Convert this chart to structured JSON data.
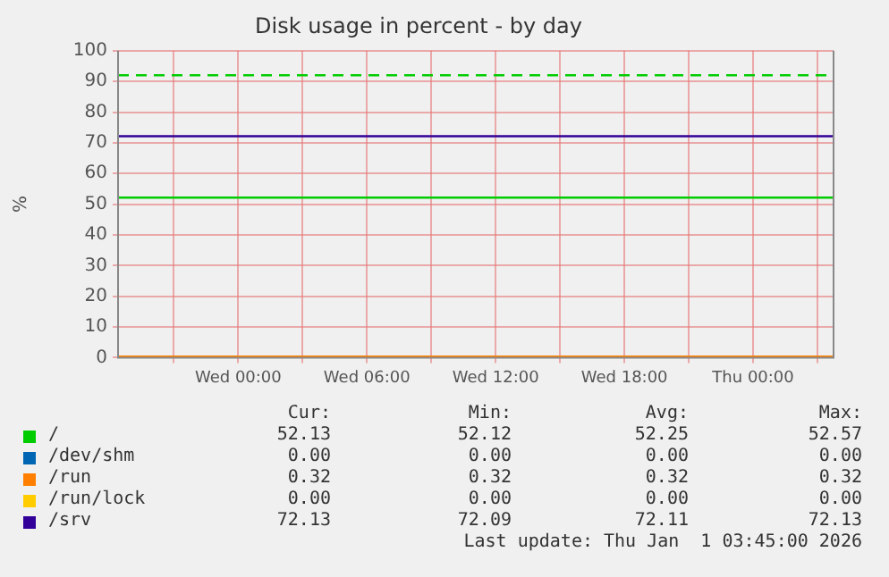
{
  "chart_data": {
    "type": "line",
    "title": "Disk usage in percent - by day",
    "ylabel": "%",
    "x": [
      "2025-12-30T18:24",
      "2026-01-01T03:45"
    ],
    "xlim": [
      "2025-12-30T18:24",
      "2026-01-01T03:45"
    ],
    "xticks": [
      {
        "value": "2025-12-30T21:00",
        "label": null
      },
      {
        "value": "2025-12-31T00:00",
        "label": "Wed 00:00"
      },
      {
        "value": "2025-12-31T03:00",
        "label": null
      },
      {
        "value": "2025-12-31T06:00",
        "label": "Wed 06:00"
      },
      {
        "value": "2025-12-31T09:00",
        "label": null
      },
      {
        "value": "2025-12-31T12:00",
        "label": "Wed 12:00"
      },
      {
        "value": "2025-12-31T15:00",
        "label": null
      },
      {
        "value": "2025-12-31T18:00",
        "label": "Wed 18:00"
      },
      {
        "value": "2025-12-31T21:00",
        "label": null
      },
      {
        "value": "2026-01-01T00:00",
        "label": "Thu 00:00"
      },
      {
        "value": "2026-01-01T03:00",
        "label": null
      }
    ],
    "ylim": [
      0,
      100
    ],
    "yticks": [
      0,
      10,
      20,
      30,
      40,
      50,
      60,
      70,
      80,
      90,
      100
    ],
    "grid": true,
    "legend": "bottom",
    "marker": "none",
    "line_style": "solid",
    "series": [
      {
        "name": "/",
        "type": "step",
        "color": "#00cc00",
        "x": [
          "2025-12-30T18:24",
          "2025-12-31T02:00",
          "2026-01-01T03:45"
        ],
        "values": [
          52.57,
          52.12,
          52.13
        ]
      },
      {
        "name": "/dev/shm",
        "color": "#0066b3",
        "values": [
          null,
          null
        ]
      },
      {
        "name": "/run",
        "color": "#ff8000",
        "values": [
          0.32,
          0.32
        ]
      },
      {
        "name": "/run/lock",
        "color": "#ffcc00",
        "values": [
          null,
          null
        ]
      },
      {
        "name": "/srv",
        "color": "#330099",
        "values": [
          72.13,
          72.13
        ]
      }
    ],
    "ref_lines": [
      {
        "axis": "y",
        "value": 92,
        "color": "#00cc00",
        "line_style": "dashed"
      }
    ],
    "annotations": [
      "Cur:",
      "Min:",
      "Avg:",
      "Max:",
      "52.13",
      "52.12",
      "52.25",
      "52.57",
      "0.00",
      "0.00",
      "0.00",
      "0.00",
      "0.32",
      "0.32",
      "0.32",
      "0.32",
      "0.00",
      "0.00",
      "0.00",
      "0.00",
      "72.13",
      "72.09",
      "72.11",
      "72.13",
      "Last update: Thu Jan  1 03:45:00 2026"
    ]
  }
}
